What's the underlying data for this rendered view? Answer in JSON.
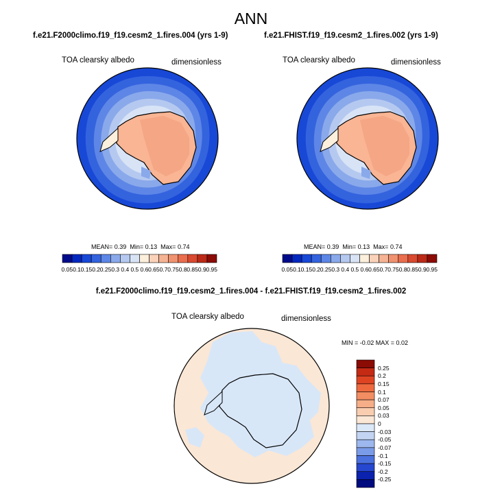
{
  "main_title": "ANN",
  "panels": [
    {
      "case_title": "f.e21.F2000climo.f19_f19.cesm2_1.fires.004 (yrs 1-9)",
      "var_label": "TOA clearsky albedo",
      "units": "dimensionless",
      "mean_label": "MEAN=",
      "mean": "0.39",
      "min_label": "Min=",
      "min": "0.13",
      "max_label": "Max=",
      "max": "0.74"
    },
    {
      "case_title": "f.e21.FHIST.f19_f19.cesm2_1.fires.002 (yrs 1-9)",
      "var_label": "TOA clearsky albedo",
      "units": "dimensionless",
      "mean_label": "MEAN=",
      "mean": "0.39",
      "min_label": "Min=",
      "min": "0.13",
      "max_label": "Max=",
      "max": "0.74"
    }
  ],
  "diff": {
    "title": "f.e21.F2000climo.f19_f19.cesm2_1.fires.004 - f.e21.FHIST.f19_f19.cesm2_1.fires.002",
    "var_label": "TOA clearsky albedo",
    "units": "dimensionless",
    "minmax_text": "MIN =  -0.02 MAX =  0.02"
  },
  "chart_data": [
    {
      "type": "heatmap",
      "projection": "south-polar-stereographic",
      "title": "f.e21.F2000climo.f19_f19.cesm2_1.fires.004 (yrs 1-9)",
      "variable": "TOA clearsky albedo",
      "units": "dimensionless",
      "mean": 0.39,
      "min": 0.13,
      "max": 0.74,
      "colorbar_ticks": [
        "0.05",
        "0.1",
        "0.15",
        "0.2",
        "0.25",
        "0.3",
        "0.4",
        "0.5",
        "0.6",
        "0.65",
        "0.7",
        "0.75",
        "0.8",
        "0.85",
        "0.9",
        "0.95"
      ],
      "colorbar_colors": [
        "#000b8b",
        "#0228bf",
        "#1848d6",
        "#3463de",
        "#5d86e6",
        "#8aa9eb",
        "#b5c9f0",
        "#d8e4f6",
        "#fcefdc",
        "#f9d2b9",
        "#f5b394",
        "#f09270",
        "#ea6e4e",
        "#d94a30",
        "#bb2a18",
        "#8b0b05"
      ]
    },
    {
      "type": "heatmap",
      "projection": "south-polar-stereographic",
      "title": "f.e21.FHIST.f19_f19.cesm2_1.fires.002 (yrs 1-9)",
      "variable": "TOA clearsky albedo",
      "units": "dimensionless",
      "mean": 0.39,
      "min": 0.13,
      "max": 0.74,
      "colorbar_ticks": [
        "0.05",
        "0.1",
        "0.15",
        "0.2",
        "0.25",
        "0.3",
        "0.4",
        "0.5",
        "0.6",
        "0.65",
        "0.7",
        "0.75",
        "0.8",
        "0.85",
        "0.9",
        "0.95"
      ],
      "colorbar_colors": [
        "#000b8b",
        "#0228bf",
        "#1848d6",
        "#3463de",
        "#5d86e6",
        "#8aa9eb",
        "#b5c9f0",
        "#d8e4f6",
        "#fcefdc",
        "#f9d2b9",
        "#f5b394",
        "#f09270",
        "#ea6e4e",
        "#d94a30",
        "#bb2a18",
        "#8b0b05"
      ]
    },
    {
      "type": "heatmap",
      "projection": "south-polar-stereographic",
      "title": "f.e21.F2000climo.f19_f19.cesm2_1.fires.004 - f.e21.FHIST.f19_f19.cesm2_1.fires.002",
      "variable": "TOA clearsky albedo",
      "units": "dimensionless",
      "min": -0.02,
      "max": 0.02,
      "colorbar_ticks": [
        "0.25",
        "0.2",
        "0.15",
        "0.1",
        "0.07",
        "0.05",
        "0.03",
        "0",
        "-0.03",
        "-0.05",
        "-0.07",
        "-0.1",
        "-0.15",
        "-0.2",
        "-0.25"
      ],
      "colorbar_colors": [
        "#8b0b05",
        "#c42a14",
        "#df4422",
        "#ee6a3e",
        "#f38d62",
        "#f6ae88",
        "#f9cdb0",
        "#fbe7d5",
        "#dbe8f8",
        "#c3d4f3",
        "#9db8ee",
        "#7a9be8",
        "#4b71de",
        "#2647cf",
        "#0a22ad",
        "#000b7e"
      ]
    }
  ],
  "colors": {
    "ocean_outer": "#1848d6",
    "land_ice": "#f9b594",
    "diff_positive": "#fbe7d5",
    "diff_negative": "#d8e7f8"
  }
}
